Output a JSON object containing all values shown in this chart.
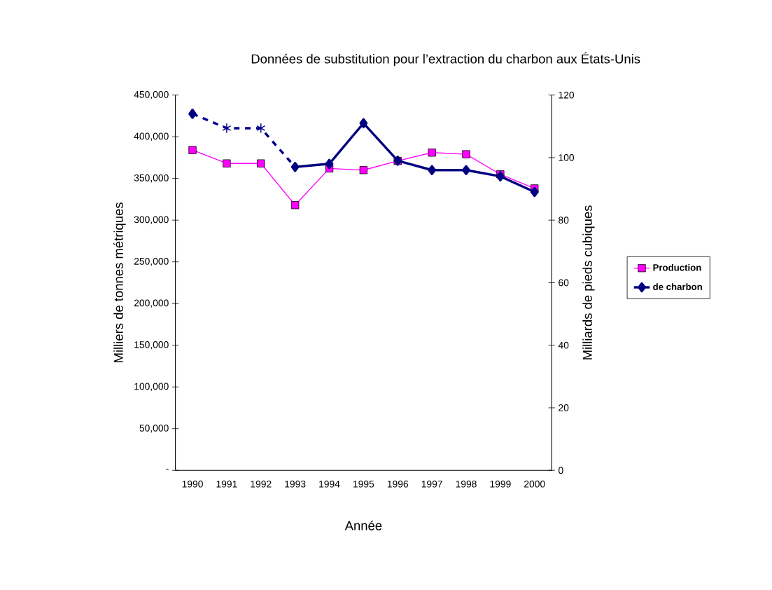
{
  "chart_data": {
    "type": "line",
    "title": "Données de substitution pour l’extraction du charbon aux États-Unis",
    "xlabel": "Année",
    "ylabel": "Milliers de tonnes métriques",
    "y2label": "Milliards de pieds cubiques",
    "categories": [
      "1990",
      "1991",
      "1992",
      "1993",
      "1994",
      "1995",
      "1996",
      "1997",
      "1998",
      "1999",
      "2000"
    ],
    "series": [
      {
        "name": "Production",
        "color": "#ff00ff",
        "marker": "square",
        "line_style": "solid",
        "values": [
          384000,
          368000,
          368000,
          318000,
          362000,
          360000,
          371000,
          381000,
          379000,
          355000,
          338000
        ]
      },
      {
        "name": "de charbon",
        "color": "#000080",
        "marker": "diamond",
        "line_style": "solid",
        "axis": "y2",
        "values": [
          114,
          null,
          null,
          97,
          98,
          111,
          99,
          96,
          96,
          94,
          89
        ]
      },
      {
        "color": "#00008b",
        "marker": "cross",
        "line_style": "dashed",
        "axis": "y2",
        "values": [
          114,
          109.4,
          109.4,
          97,
          null,
          null,
          null,
          null,
          null,
          null,
          null
        ]
      }
    ],
    "ylim": [
      0,
      450000
    ],
    "yticks": [
      {
        "value": 0,
        "label": "-"
      },
      {
        "value": 50000,
        "label": "50,000"
      },
      {
        "value": 100000,
        "label": "100,000"
      },
      {
        "value": 150000,
        "label": "150,000"
      },
      {
        "value": 200000,
        "label": "200,000"
      },
      {
        "value": 250000,
        "label": "250,000"
      },
      {
        "value": 300000,
        "label": "300,000"
      },
      {
        "value": 350000,
        "label": "350,000"
      },
      {
        "value": 400000,
        "label": "400,000"
      },
      {
        "value": 450000,
        "label": "450,000"
      }
    ],
    "y2lim": [
      0,
      120
    ],
    "y2ticks": [
      0,
      20,
      40,
      60,
      80,
      100,
      120
    ],
    "legend": "right",
    "grid": false
  }
}
